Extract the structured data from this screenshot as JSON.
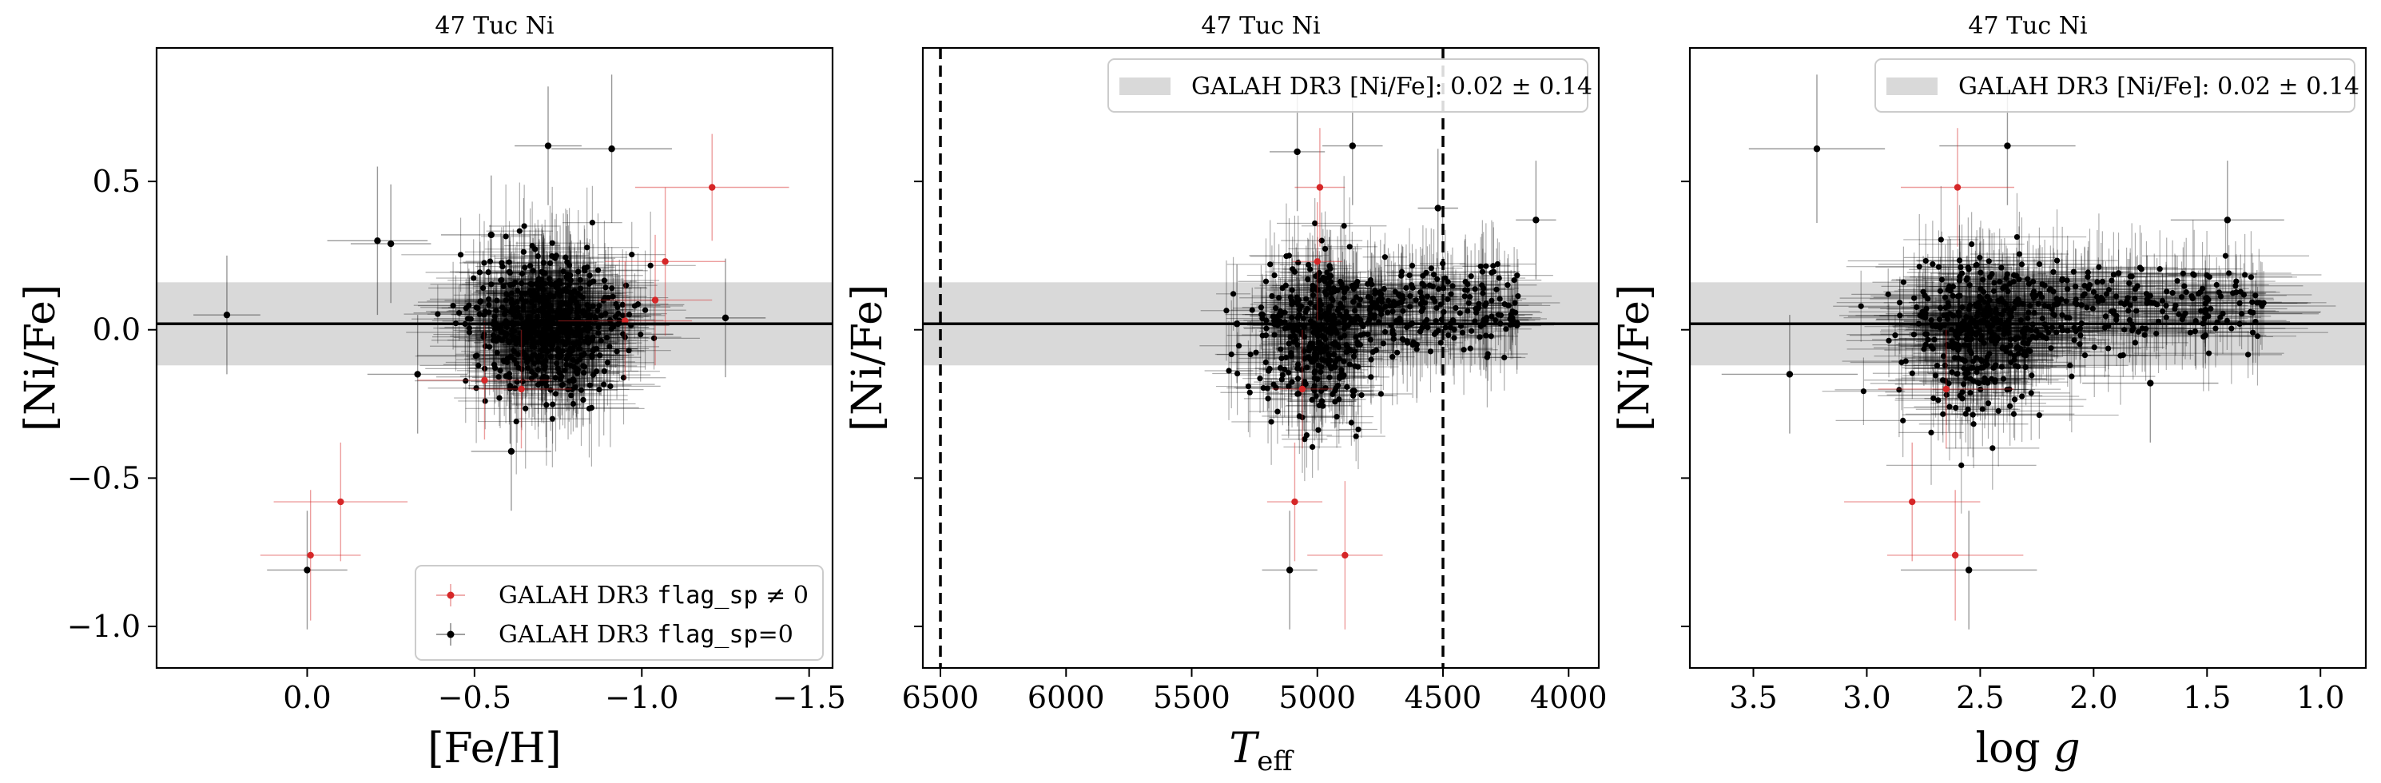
{
  "figure": {
    "panels": [
      {
        "title": "47 Tuc Ni"
      },
      {
        "title": "47 Tuc Ni"
      },
      {
        "title": "47 Tuc Ni"
      }
    ]
  },
  "legend_left": {
    "flagged_prefix": "GALAH DR3 ",
    "flagged_code": "flag_sp",
    "flagged_suffix": " ≠ 0",
    "clean_prefix": "GALAH DR3 ",
    "clean_code": "flag_sp",
    "clean_suffix": "=0"
  },
  "legend_band": {
    "label": "GALAH DR3 [Ni/Fe]: 0.02 ± 0.14"
  },
  "chart_data": [
    {
      "type": "scatter",
      "title": "47 Tuc Ni",
      "xlabel": "[Fe/H]",
      "ylabel": "[Ni/Fe]",
      "xlim": [
        0.45,
        -1.57
      ],
      "ylim": [
        -1.14,
        0.95
      ],
      "x_inverted": true,
      "xticks": [
        0.0,
        -0.5,
        -1.0,
        -1.5
      ],
      "xtick_labels": [
        "0.0",
        "−0.5",
        "−1.0",
        "−1.5"
      ],
      "yticks": [
        0.5,
        0.0,
        -0.5,
        -1.0
      ],
      "ytick_labels": [
        "0.5",
        "0.0",
        "−0.5",
        "−1.0"
      ],
      "band": {
        "center": 0.02,
        "sigma": 0.14,
        "color": "#d9d9d9"
      },
      "reference_line": 0.02,
      "legend_position": "lower-right",
      "series": [
        {
          "name": "GALAH DR3 flag_sp ≠ 0",
          "color": "#d62728",
          "points": [
            {
              "x": -1.21,
              "y": 0.48,
              "xerr": 0.23,
              "yerr": 0.18
            },
            {
              "x": -1.07,
              "y": 0.23,
              "xerr": 0.18,
              "yerr": 0.25
            },
            {
              "x": -1.04,
              "y": 0.1,
              "xerr": 0.17,
              "yerr": 0.22
            },
            {
              "x": -0.95,
              "y": 0.03,
              "xerr": 0.2,
              "yerr": 0.2
            },
            {
              "x": -0.53,
              "y": -0.17,
              "xerr": 0.2,
              "yerr": 0.2
            },
            {
              "x": -0.1,
              "y": -0.58,
              "xerr": 0.2,
              "yerr": 0.2
            },
            {
              "x": -0.01,
              "y": -0.76,
              "xerr": 0.15,
              "yerr": 0.22
            },
            {
              "x": -0.64,
              "y": -0.2,
              "xerr": 0.15,
              "yerr": 0.2
            }
          ]
        },
        {
          "name": "GALAH DR3 flag_sp=0",
          "color": "#000000",
          "points": [
            {
              "x": 0.24,
              "y": 0.05,
              "xerr": 0.1,
              "yerr": 0.2
            },
            {
              "x": -0.21,
              "y": 0.3,
              "xerr": 0.15,
              "yerr": 0.25
            },
            {
              "x": -0.25,
              "y": 0.29,
              "xerr": 0.12,
              "yerr": 0.2
            },
            {
              "x": -0.33,
              "y": -0.15,
              "xerr": 0.15,
              "yerr": 0.2
            },
            {
              "x": -0.55,
              "y": 0.32,
              "xerr": 0.15,
              "yerr": 0.2
            },
            {
              "x": -0.61,
              "y": -0.41,
              "xerr": 0.12,
              "yerr": 0.2
            },
            {
              "x": -0.91,
              "y": 0.61,
              "xerr": 0.18,
              "yerr": 0.25
            },
            {
              "x": -0.72,
              "y": 0.62,
              "xerr": 0.1,
              "yerr": 0.2
            },
            {
              "x": -1.25,
              "y": 0.04,
              "xerr": 0.12,
              "yerr": 0.2
            },
            {
              "x": 0.0,
              "y": -0.81,
              "xerr": 0.12,
              "yerr": 0.2
            }
          ]
        }
      ]
    },
    {
      "type": "scatter",
      "title": "47 Tuc Ni",
      "xlabel": "T_eff",
      "ylabel": "[Ni/Fe]",
      "xlim": [
        6570,
        3880
      ],
      "ylim": [
        -1.14,
        0.95
      ],
      "x_inverted": true,
      "xticks": [
        6500,
        6000,
        5500,
        5000,
        4500,
        4000
      ],
      "xtick_labels": [
        "6500",
        "6000",
        "5500",
        "5000",
        "4500",
        "4000"
      ],
      "vlines": [
        6500,
        4500
      ],
      "band": {
        "center": 0.02,
        "sigma": 0.14,
        "color": "#d9d9d9"
      },
      "reference_line": 0.02,
      "legend_position": "upper-right",
      "series": [
        {
          "name": "GALAH DR3 flag_sp ≠ 0",
          "color": "#d62728",
          "points": [
            {
              "x": 4990,
              "y": 0.48,
              "xerr": 100,
              "yerr": 0.2
            },
            {
              "x": 5000,
              "y": 0.23,
              "xerr": 100,
              "yerr": 0.2
            },
            {
              "x": 5090,
              "y": -0.58,
              "xerr": 110,
              "yerr": 0.2
            },
            {
              "x": 4890,
              "y": -0.76,
              "xerr": 150,
              "yerr": 0.25
            },
            {
              "x": 5060,
              "y": -0.2,
              "xerr": 120,
              "yerr": 0.2
            }
          ]
        },
        {
          "name": "GALAH DR3 flag_sp=0",
          "color": "#000000",
          "points": [
            {
              "x": 5110,
              "y": -0.81,
              "xerr": 110,
              "yerr": 0.2
            },
            {
              "x": 4860,
              "y": 0.62,
              "xerr": 120,
              "yerr": 0.2
            },
            {
              "x": 5080,
              "y": 0.6,
              "xerr": 110,
              "yerr": 0.2
            },
            {
              "x": 4130,
              "y": 0.37,
              "xerr": 80,
              "yerr": 0.2
            },
            {
              "x": 4520,
              "y": 0.41,
              "xerr": 80,
              "yerr": 0.2
            },
            {
              "x": 5320,
              "y": 0.02,
              "xerr": 130,
              "yerr": 0.2
            }
          ]
        }
      ]
    },
    {
      "type": "scatter",
      "title": "47 Tuc Ni",
      "xlabel": "log g",
      "ylabel": "[Ni/Fe]",
      "xlim": [
        3.78,
        0.8
      ],
      "ylim": [
        -1.14,
        0.95
      ],
      "x_inverted": true,
      "xticks": [
        3.5,
        3.0,
        2.5,
        2.0,
        1.5,
        1.0
      ],
      "xtick_labels": [
        "3.5",
        "3.0",
        "2.5",
        "2.0",
        "1.5",
        "1.0"
      ],
      "band": {
        "center": 0.02,
        "sigma": 0.14,
        "color": "#d9d9d9"
      },
      "reference_line": 0.02,
      "legend_position": "upper-right",
      "series": [
        {
          "name": "GALAH DR3 flag_sp ≠ 0",
          "color": "#d62728",
          "points": [
            {
              "x": 2.6,
              "y": 0.48,
              "xerr": 0.25,
              "yerr": 0.2
            },
            {
              "x": 2.8,
              "y": -0.58,
              "xerr": 0.3,
              "yerr": 0.2
            },
            {
              "x": 2.61,
              "y": -0.76,
              "xerr": 0.3,
              "yerr": 0.22
            },
            {
              "x": 2.65,
              "y": -0.2,
              "xerr": 0.3,
              "yerr": 0.2
            }
          ]
        },
        {
          "name": "GALAH DR3 flag_sp=0",
          "color": "#000000",
          "points": [
            {
              "x": 3.22,
              "y": 0.61,
              "xerr": 0.3,
              "yerr": 0.25
            },
            {
              "x": 2.55,
              "y": -0.81,
              "xerr": 0.3,
              "yerr": 0.2
            },
            {
              "x": 1.41,
              "y": 0.37,
              "xerr": 0.25,
              "yerr": 0.2
            },
            {
              "x": 3.34,
              "y": -0.15,
              "xerr": 0.3,
              "yerr": 0.2
            },
            {
              "x": 2.38,
              "y": 0.62,
              "xerr": 0.3,
              "yerr": 0.2
            },
            {
              "x": 1.75,
              "y": -0.18,
              "xerr": 0.3,
              "yerr": 0.2
            }
          ]
        }
      ]
    }
  ]
}
